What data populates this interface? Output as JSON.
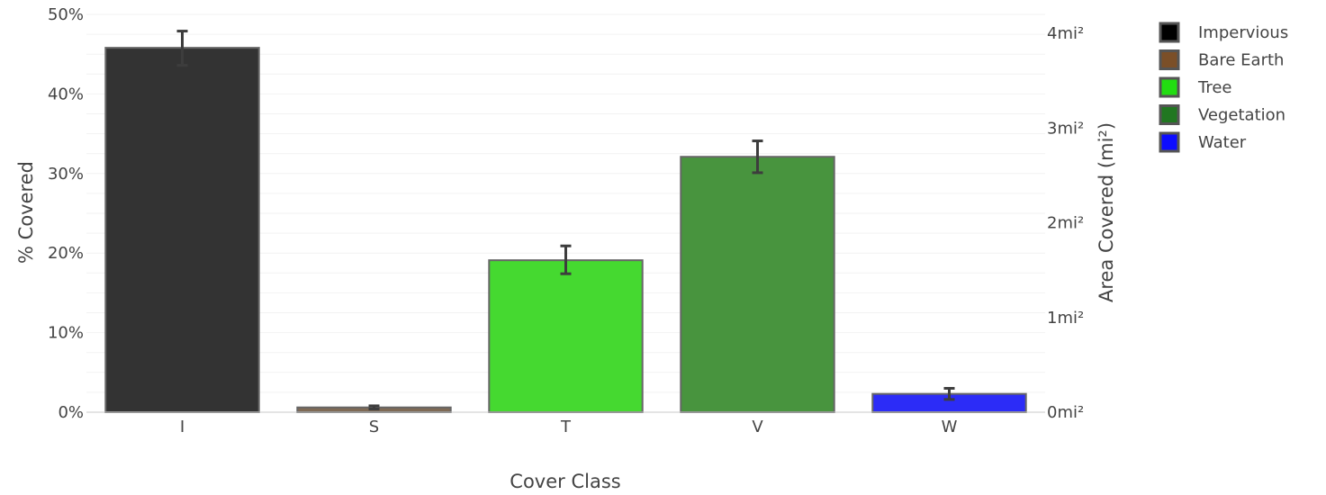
{
  "chart_data": {
    "type": "bar",
    "title": "",
    "xlabel": "Cover Class",
    "ylabel": "% Covered",
    "y2label": "Area Covered (mi²)",
    "categories": [
      "I",
      "S",
      "T",
      "V",
      "W"
    ],
    "values": [
      45.8,
      0.6,
      19.1,
      32.1,
      2.3
    ],
    "error_low": [
      43.6,
      0.4,
      17.4,
      30.1,
      1.6
    ],
    "error_high": [
      47.9,
      0.8,
      20.9,
      34.1,
      3.0
    ],
    "colors": [
      "#333333",
      "#7f6a55",
      "#45d930",
      "#48943e",
      "#2c2cf7"
    ],
    "ylim": [
      0,
      50
    ],
    "yticks": [
      "0%",
      "10%",
      "20%",
      "30%",
      "40%",
      "50%"
    ],
    "y2lim": [
      0,
      4.2
    ],
    "y2ticks": [
      "0mi²",
      "1mi²",
      "2mi²",
      "3mi²",
      "4mi²"
    ],
    "grid": true,
    "legend_position": "top-right",
    "legend": [
      {
        "label": "Impervious",
        "color": "#000000"
      },
      {
        "label": "Bare Earth",
        "color": "#7b4f28"
      },
      {
        "label": "Tree",
        "color": "#22dd11"
      },
      {
        "label": "Vegetation",
        "color": "#217721"
      },
      {
        "label": "Water",
        "color": "#0d0dff"
      }
    ]
  }
}
